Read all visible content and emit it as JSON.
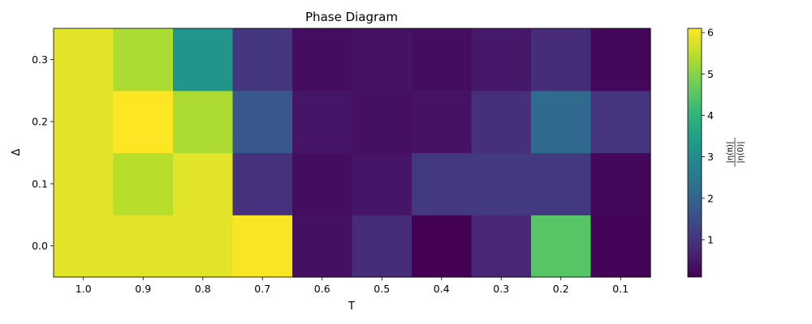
{
  "chart_data": {
    "type": "heatmap",
    "title": "Phase Diagram",
    "xlabel": "T",
    "ylabel": "Δ",
    "x_categories": [
      "1.0",
      "0.9",
      "0.8",
      "0.7",
      "0.6",
      "0.5",
      "0.4",
      "0.3",
      "0.2",
      "0.1"
    ],
    "y_categories": [
      "0.0",
      "0.1",
      "0.2",
      "0.3"
    ],
    "values": [
      [
        5.85,
        5.85,
        5.85,
        6.05,
        0.35,
        0.85,
        0.1,
        0.75,
        4.5,
        0.15
      ],
      [
        5.85,
        5.45,
        5.85,
        0.95,
        0.3,
        0.45,
        1.1,
        1.1,
        1.1,
        0.2
      ],
      [
        5.85,
        6.1,
        5.35,
        1.75,
        0.45,
        0.35,
        0.4,
        0.9,
        2.15,
        1.0
      ],
      [
        5.85,
        5.35,
        3.2,
        1.05,
        0.3,
        0.4,
        0.3,
        0.5,
        0.85,
        0.2
      ]
    ],
    "colorbar": {
      "label": "|η(π)| / |η(0)|",
      "label_numerator": "|η(π)|",
      "label_denominator": "|η(0)|",
      "range": [
        0.1,
        6.1
      ],
      "ticks": [
        "1",
        "2",
        "3",
        "4",
        "5",
        "6"
      ],
      "tick_values": [
        1,
        2,
        3,
        4,
        5,
        6
      ],
      "colormap": "viridis"
    },
    "grid": false
  }
}
